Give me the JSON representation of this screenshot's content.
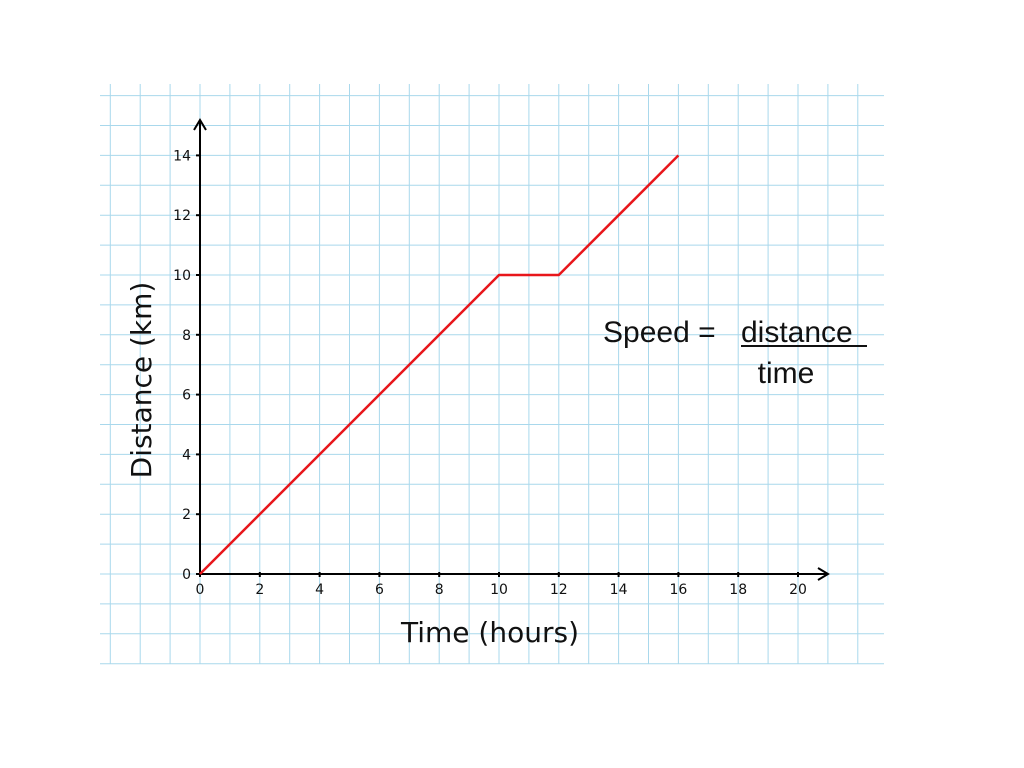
{
  "chart_data": {
    "type": "line",
    "xlabel": "Time (hours)",
    "ylabel": "Distance (km)",
    "x_ticks": [
      0,
      2,
      4,
      6,
      8,
      10,
      12,
      14,
      16,
      18,
      20
    ],
    "y_ticks": [
      0,
      2,
      4,
      6,
      8,
      10,
      12,
      14
    ],
    "xlim": [
      0,
      20
    ],
    "ylim": [
      0,
      14
    ],
    "grid": true,
    "series": [
      {
        "x": [
          0,
          10,
          12,
          16
        ],
        "y": [
          0,
          10,
          10,
          14
        ]
      }
    ]
  },
  "formula": {
    "lhs": "Speed =",
    "numerator": "distance",
    "denominator": "time"
  },
  "colors": {
    "line": "#e8161b",
    "grid": "#a9d8ec",
    "axis": "#000000",
    "background": "#ffffff"
  }
}
